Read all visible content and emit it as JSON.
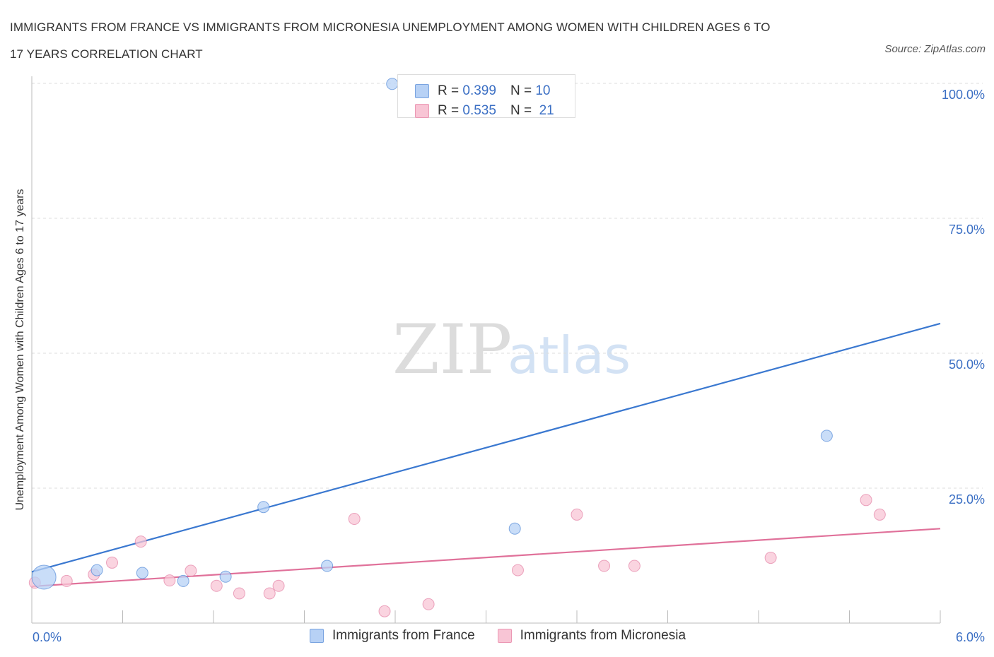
{
  "chart_data": {
    "type": "scatter",
    "title_line1": "IMMIGRANTS FROM FRANCE VS IMMIGRANTS FROM MICRONESIA UNEMPLOYMENT AMONG WOMEN WITH CHILDREN AGES 6 TO",
    "title_line2": "17 YEARS CORRELATION CHART",
    "source": "Source: ZipAtlas.com",
    "ylabel": "Unemployment Among Women with Children Ages 6 to 17 years",
    "xlim": [
      0,
      6
    ],
    "ylim": [
      0,
      100
    ],
    "x_tick_labels": [
      "0.0%",
      "6.0%"
    ],
    "y_tick_labels": [
      "100.0%",
      "75.0%",
      "50.0%",
      "25.0%"
    ],
    "y_ticks": [
      100,
      75,
      50,
      25
    ],
    "grid": "horizontal dashed",
    "watermark": {
      "zip": "ZIP",
      "atlas": "atlas"
    },
    "legend_stats": [
      {
        "r_label": "R =",
        "r": "0.399",
        "n_label": "N =",
        "n": "10"
      },
      {
        "r_label": "R =",
        "r": "0.535",
        "n_label": "N =",
        "n": "21"
      }
    ],
    "series": [
      {
        "name": "Immigrants from France",
        "color": "#3a78d0",
        "fill": "#b7d1f5",
        "points": [
          {
            "x": 0.08,
            "y": 8.5,
            "big": true
          },
          {
            "x": 0.43,
            "y": 9.8
          },
          {
            "x": 0.73,
            "y": 9.3
          },
          {
            "x": 1.0,
            "y": 7.8
          },
          {
            "x": 1.28,
            "y": 8.6
          },
          {
            "x": 1.53,
            "y": 21.5
          },
          {
            "x": 1.95,
            "y": 10.6
          },
          {
            "x": 2.38,
            "y": 99.9
          },
          {
            "x": 3.19,
            "y": 17.5
          },
          {
            "x": 5.25,
            "y": 34.7
          }
        ],
        "trend": [
          [
            0,
            9.5
          ],
          [
            6,
            55.5
          ]
        ]
      },
      {
        "name": "Immigrants from Micronesia",
        "color": "#e0719a",
        "fill": "#f8c5d5",
        "points": [
          {
            "x": 0.02,
            "y": 7.5
          },
          {
            "x": 0.23,
            "y": 7.8
          },
          {
            "x": 0.41,
            "y": 9.0
          },
          {
            "x": 0.53,
            "y": 11.2
          },
          {
            "x": 0.72,
            "y": 15.1
          },
          {
            "x": 0.91,
            "y": 7.9
          },
          {
            "x": 1.05,
            "y": 9.7
          },
          {
            "x": 1.22,
            "y": 6.9
          },
          {
            "x": 1.37,
            "y": 5.5
          },
          {
            "x": 1.57,
            "y": 5.5
          },
          {
            "x": 1.63,
            "y": 6.9
          },
          {
            "x": 2.13,
            "y": 19.3
          },
          {
            "x": 2.33,
            "y": 2.2
          },
          {
            "x": 2.62,
            "y": 3.5
          },
          {
            "x": 3.21,
            "y": 9.8
          },
          {
            "x": 3.6,
            "y": 20.1
          },
          {
            "x": 3.78,
            "y": 10.6
          },
          {
            "x": 3.98,
            "y": 10.6
          },
          {
            "x": 4.88,
            "y": 12.1
          },
          {
            "x": 5.51,
            "y": 22.8
          },
          {
            "x": 5.6,
            "y": 20.1
          }
        ],
        "trend": [
          [
            0,
            6.8
          ],
          [
            6,
            17.5
          ]
        ]
      }
    ]
  }
}
